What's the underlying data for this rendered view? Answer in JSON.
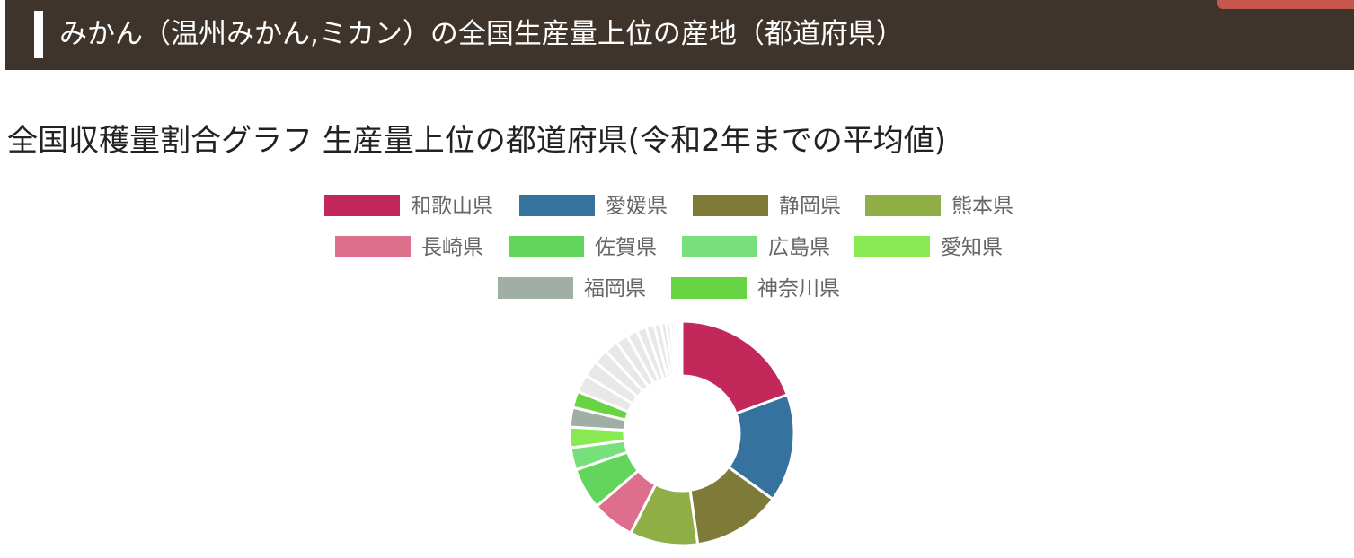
{
  "header": {
    "title": "みかん（温州みかん,ミカン）の全国生産量上位の産地（都道府県）"
  },
  "section": {
    "title": "全国収穫量割合グラフ 生産量上位の都道府県(令和2年までの平均値)"
  },
  "colors": {
    "header_bg": "#3f342b",
    "badge": "#c8574d",
    "other_slices": "#e8e8e8"
  },
  "chart_data": {
    "type": "pie",
    "style": "donut",
    "title": "全国収穫量割合グラフ 生産量上位の都道府県(令和2年までの平均値)",
    "legend_position": "top",
    "series": [
      {
        "name": "和歌山県",
        "value": 19.8,
        "color": "#c2295a"
      },
      {
        "name": "愛媛県",
        "value": 15.9,
        "color": "#35729e"
      },
      {
        "name": "静岡県",
        "value": 13.0,
        "color": "#7e7b39"
      },
      {
        "name": "熊本県",
        "value": 10.0,
        "color": "#8fae46"
      },
      {
        "name": "長崎県",
        "value": 6.3,
        "color": "#dd6f8d"
      },
      {
        "name": "佐賀県",
        "value": 6.1,
        "color": "#64d55c"
      },
      {
        "name": "広島県",
        "value": 3.3,
        "color": "#77e07d"
      },
      {
        "name": "愛知県",
        "value": 3.0,
        "color": "#89e953"
      },
      {
        "name": "福岡県",
        "value": 2.9,
        "color": "#a0afa5"
      },
      {
        "name": "神奈川県",
        "value": 2.4,
        "color": "#68d443"
      }
    ],
    "other_values": [
      2.6,
      2.4,
      2.2,
      2.0,
      1.8,
      1.6,
      1.4,
      1.2,
      1.0,
      0.8,
      0.6,
      0.5,
      0.4,
      0.3,
      0.3,
      0.2
    ]
  }
}
